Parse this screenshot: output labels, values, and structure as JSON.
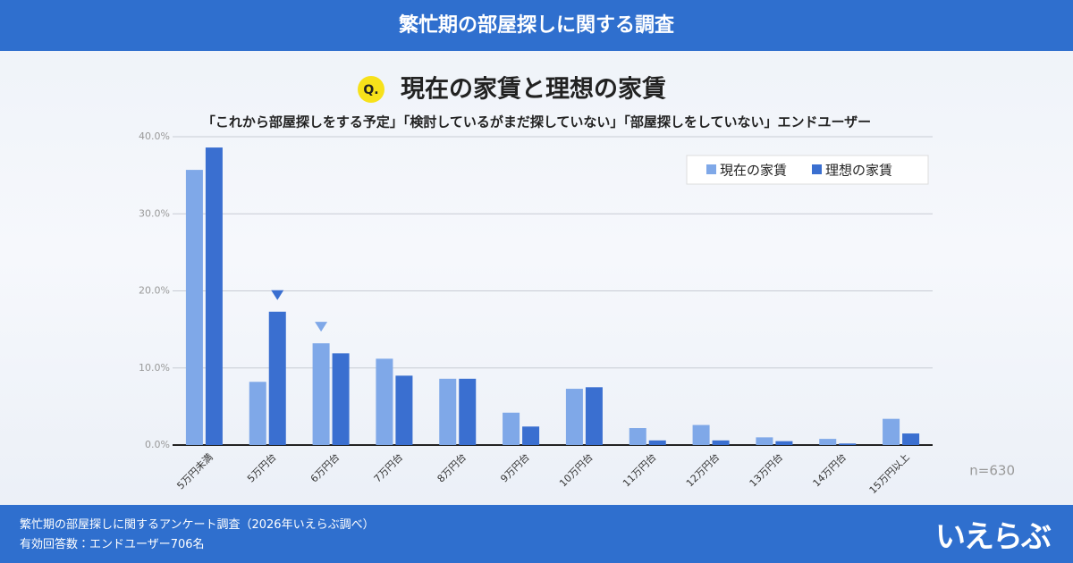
{
  "header": {
    "title": "繁忙期の部屋探しに関する調査"
  },
  "footer": {
    "source": "繁忙期の部屋探しに関するアンケート調査（2026年いえらぶ調べ）",
    "respondents": "有効回答数：エンドユーザー706名",
    "logo": "いえらぶ"
  },
  "chart_data": {
    "type": "bar",
    "badge": "Q.",
    "title": "現在の家賃と理想の家賃",
    "subtitle": "「これから部屋探しをする予定」「検討しているがまだ探していない」「部屋探しをしていない」エンドユーザー",
    "annotation": "n=630",
    "categories": [
      "5万円未満",
      "5万円台",
      "6万円台",
      "7万円台",
      "8万円台",
      "9万円台",
      "10万円台",
      "11万円台",
      "12万円台",
      "13万円台",
      "14万円台",
      "15万円以上"
    ],
    "series": [
      {
        "name": "現在の家賃",
        "color": "#7fa8e8",
        "values": [
          35.7,
          8.2,
          13.2,
          11.2,
          8.6,
          4.2,
          7.3,
          2.2,
          2.6,
          1.0,
          0.8,
          3.4
        ]
      },
      {
        "name": "理想の家賃",
        "color": "#3a6fd0",
        "values": [
          38.6,
          17.3,
          11.9,
          9.0,
          8.6,
          2.4,
          7.5,
          0.6,
          0.6,
          0.5,
          0.2,
          1.5
        ]
      }
    ],
    "ylim": [
      0,
      40
    ],
    "yticks": [
      {
        "value": 0,
        "label": "0.0%"
      },
      {
        "value": 10,
        "label": "10.0%"
      },
      {
        "value": 20,
        "label": "20.0%"
      },
      {
        "value": 30,
        "label": "30.0%"
      },
      {
        "value": 40,
        "label": "40.0%"
      }
    ],
    "grid": true,
    "legend": "top-right"
  }
}
